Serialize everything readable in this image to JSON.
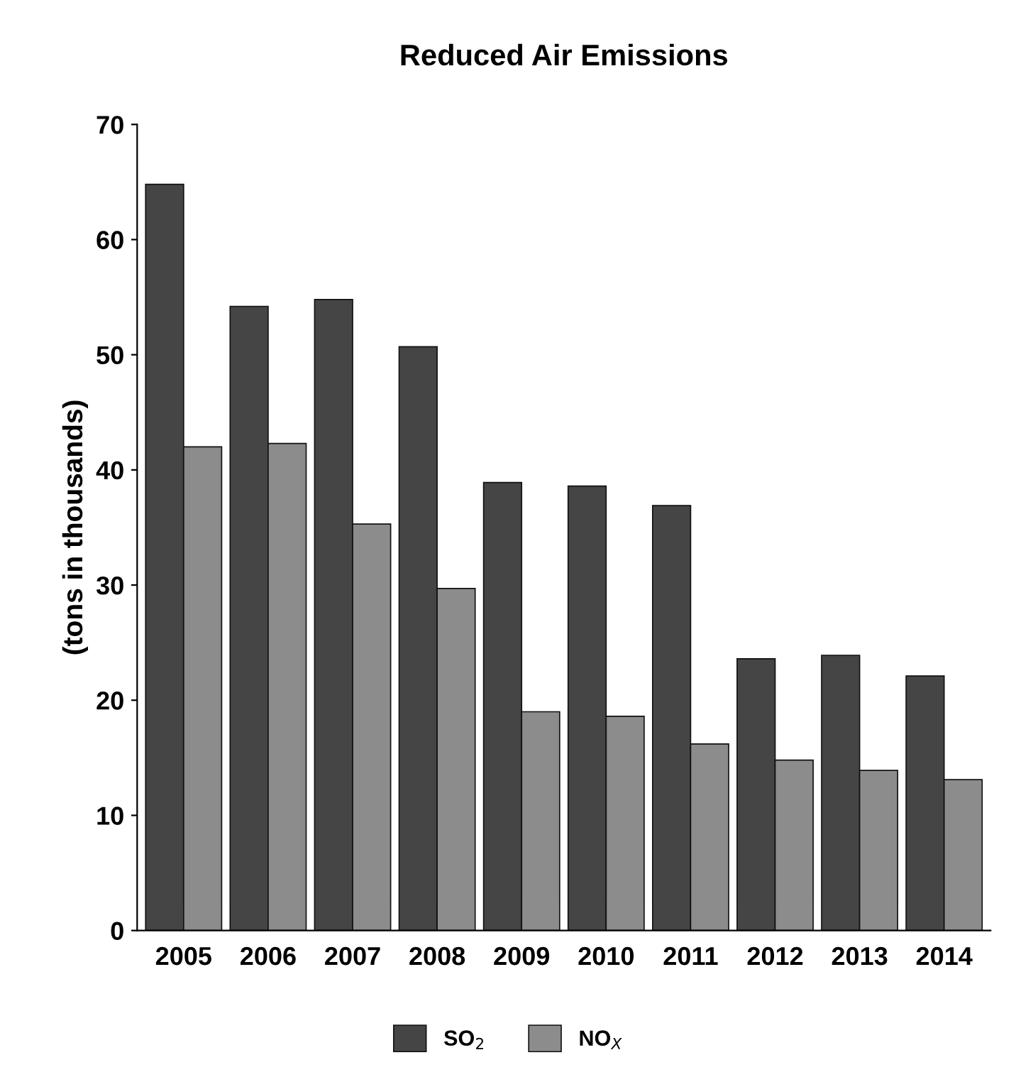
{
  "chart_data": {
    "type": "bar",
    "title": "Reduced Air Emissions",
    "ylabel": "(tons in thousands)",
    "categories": [
      "2005",
      "2006",
      "2007",
      "2008",
      "2009",
      "2010",
      "2011",
      "2012",
      "2013",
      "2014"
    ],
    "series": [
      {
        "name": "SO$_{2}$",
        "color": "#454545",
        "values": [
          64.8,
          54.2,
          54.8,
          50.7,
          38.9,
          38.6,
          36.9,
          23.6,
          23.9,
          22.1
        ]
      },
      {
        "name": "NO$_{X}$",
        "color": "#8c8c8c",
        "values": [
          42.0,
          42.3,
          35.3,
          29.7,
          19.0,
          18.6,
          16.2,
          14.8,
          13.9,
          13.1
        ]
      }
    ],
    "ylim": [
      0,
      70
    ],
    "yticks": [
      0,
      10,
      20,
      30,
      40,
      50,
      60,
      70
    ],
    "grid": false,
    "legend": "bottom"
  }
}
